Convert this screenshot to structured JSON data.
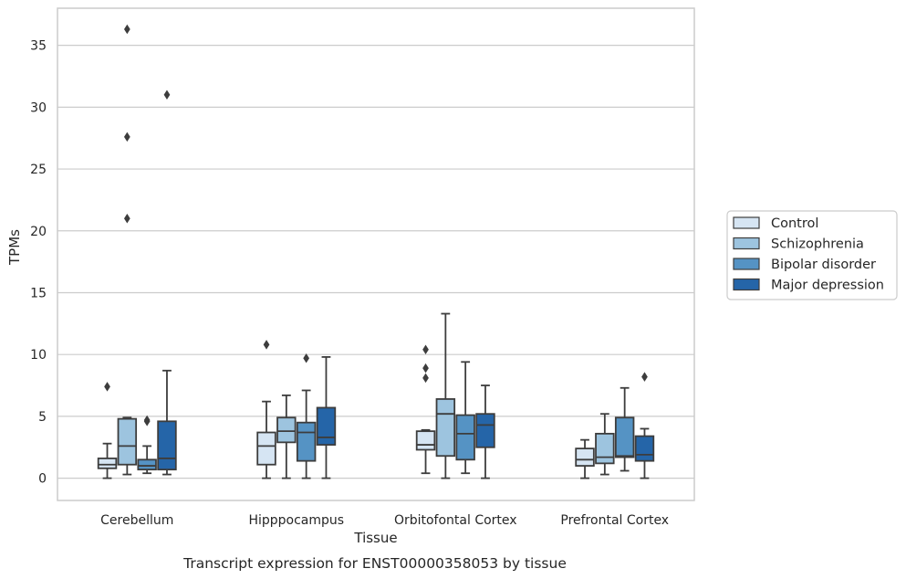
{
  "chart_data": {
    "type": "box",
    "caption": "Transcript expression for ENST00000358053 by tissue",
    "xlabel": "Tissue",
    "ylabel": "TPMs",
    "ylim": [
      -1.8,
      38
    ],
    "yticks": [
      0,
      5,
      10,
      15,
      20,
      25,
      30,
      35
    ],
    "grid": true,
    "legend_position": "right",
    "categories": [
      "Cerebellum",
      "Hipppocampus",
      "Orbitofontal Cortex",
      "Prefrontal Cortex"
    ],
    "series": [
      {
        "name": "Control",
        "color": "#d6e5f3",
        "boxes": [
          {
            "whislo": 0,
            "q1": 0.8,
            "med": 1.1,
            "q3": 1.6,
            "whishi": 2.8,
            "fliers": [
              7.4
            ]
          },
          {
            "whislo": 0,
            "q1": 1.1,
            "med": 2.6,
            "q3": 3.7,
            "whishi": 6.2,
            "fliers": [
              10.8
            ]
          },
          {
            "whislo": 0.4,
            "q1": 2.3,
            "med": 2.7,
            "q3": 3.8,
            "whishi": 3.9,
            "fliers": [
              8.1,
              8.9,
              10.4
            ]
          },
          {
            "whislo": 0,
            "q1": 1.0,
            "med": 1.5,
            "q3": 2.4,
            "whishi": 3.1,
            "fliers": []
          }
        ]
      },
      {
        "name": "Schizophrenia",
        "color": "#9dc4df",
        "boxes": [
          {
            "whislo": 0.3,
            "q1": 1.1,
            "med": 2.6,
            "q3": 4.8,
            "whishi": 4.9,
            "fliers": [
              21.0,
              27.6,
              36.3
            ]
          },
          {
            "whislo": 0,
            "q1": 2.9,
            "med": 3.8,
            "q3": 4.9,
            "whishi": 6.7,
            "fliers": []
          },
          {
            "whislo": 0,
            "q1": 1.8,
            "med": 5.2,
            "q3": 6.4,
            "whishi": 13.3,
            "fliers": []
          },
          {
            "whislo": 0.3,
            "q1": 1.2,
            "med": 1.7,
            "q3": 3.6,
            "whishi": 5.2,
            "fliers": []
          }
        ]
      },
      {
        "name": "Bipolar disorder",
        "color": "#5593c4",
        "boxes": [
          {
            "whislo": 0.4,
            "q1": 0.7,
            "med": 1.0,
            "q3": 1.5,
            "whishi": 2.6,
            "fliers": [
              4.6,
              4.7
            ]
          },
          {
            "whislo": 0,
            "q1": 1.4,
            "med": 3.7,
            "q3": 4.5,
            "whishi": 7.1,
            "fliers": [
              9.7
            ]
          },
          {
            "whislo": 0.4,
            "q1": 1.5,
            "med": 3.6,
            "q3": 5.1,
            "whishi": 9.4,
            "fliers": []
          },
          {
            "whislo": 0.6,
            "q1": 1.7,
            "med": 1.8,
            "q3": 4.9,
            "whishi": 7.3,
            "fliers": []
          }
        ]
      },
      {
        "name": "Major depression",
        "color": "#2565a8",
        "boxes": [
          {
            "whislo": 0.3,
            "q1": 0.7,
            "med": 1.6,
            "q3": 4.6,
            "whishi": 8.7,
            "fliers": [
              31.0
            ]
          },
          {
            "whislo": 0,
            "q1": 2.7,
            "med": 3.3,
            "q3": 5.7,
            "whishi": 9.8,
            "fliers": []
          },
          {
            "whislo": 0,
            "q1": 2.5,
            "med": 4.3,
            "q3": 5.2,
            "whishi": 7.5,
            "fliers": []
          },
          {
            "whislo": 0,
            "q1": 1.4,
            "med": 1.9,
            "q3": 3.4,
            "whishi": 4.0,
            "fliers": [
              8.2
            ]
          }
        ]
      }
    ]
  }
}
